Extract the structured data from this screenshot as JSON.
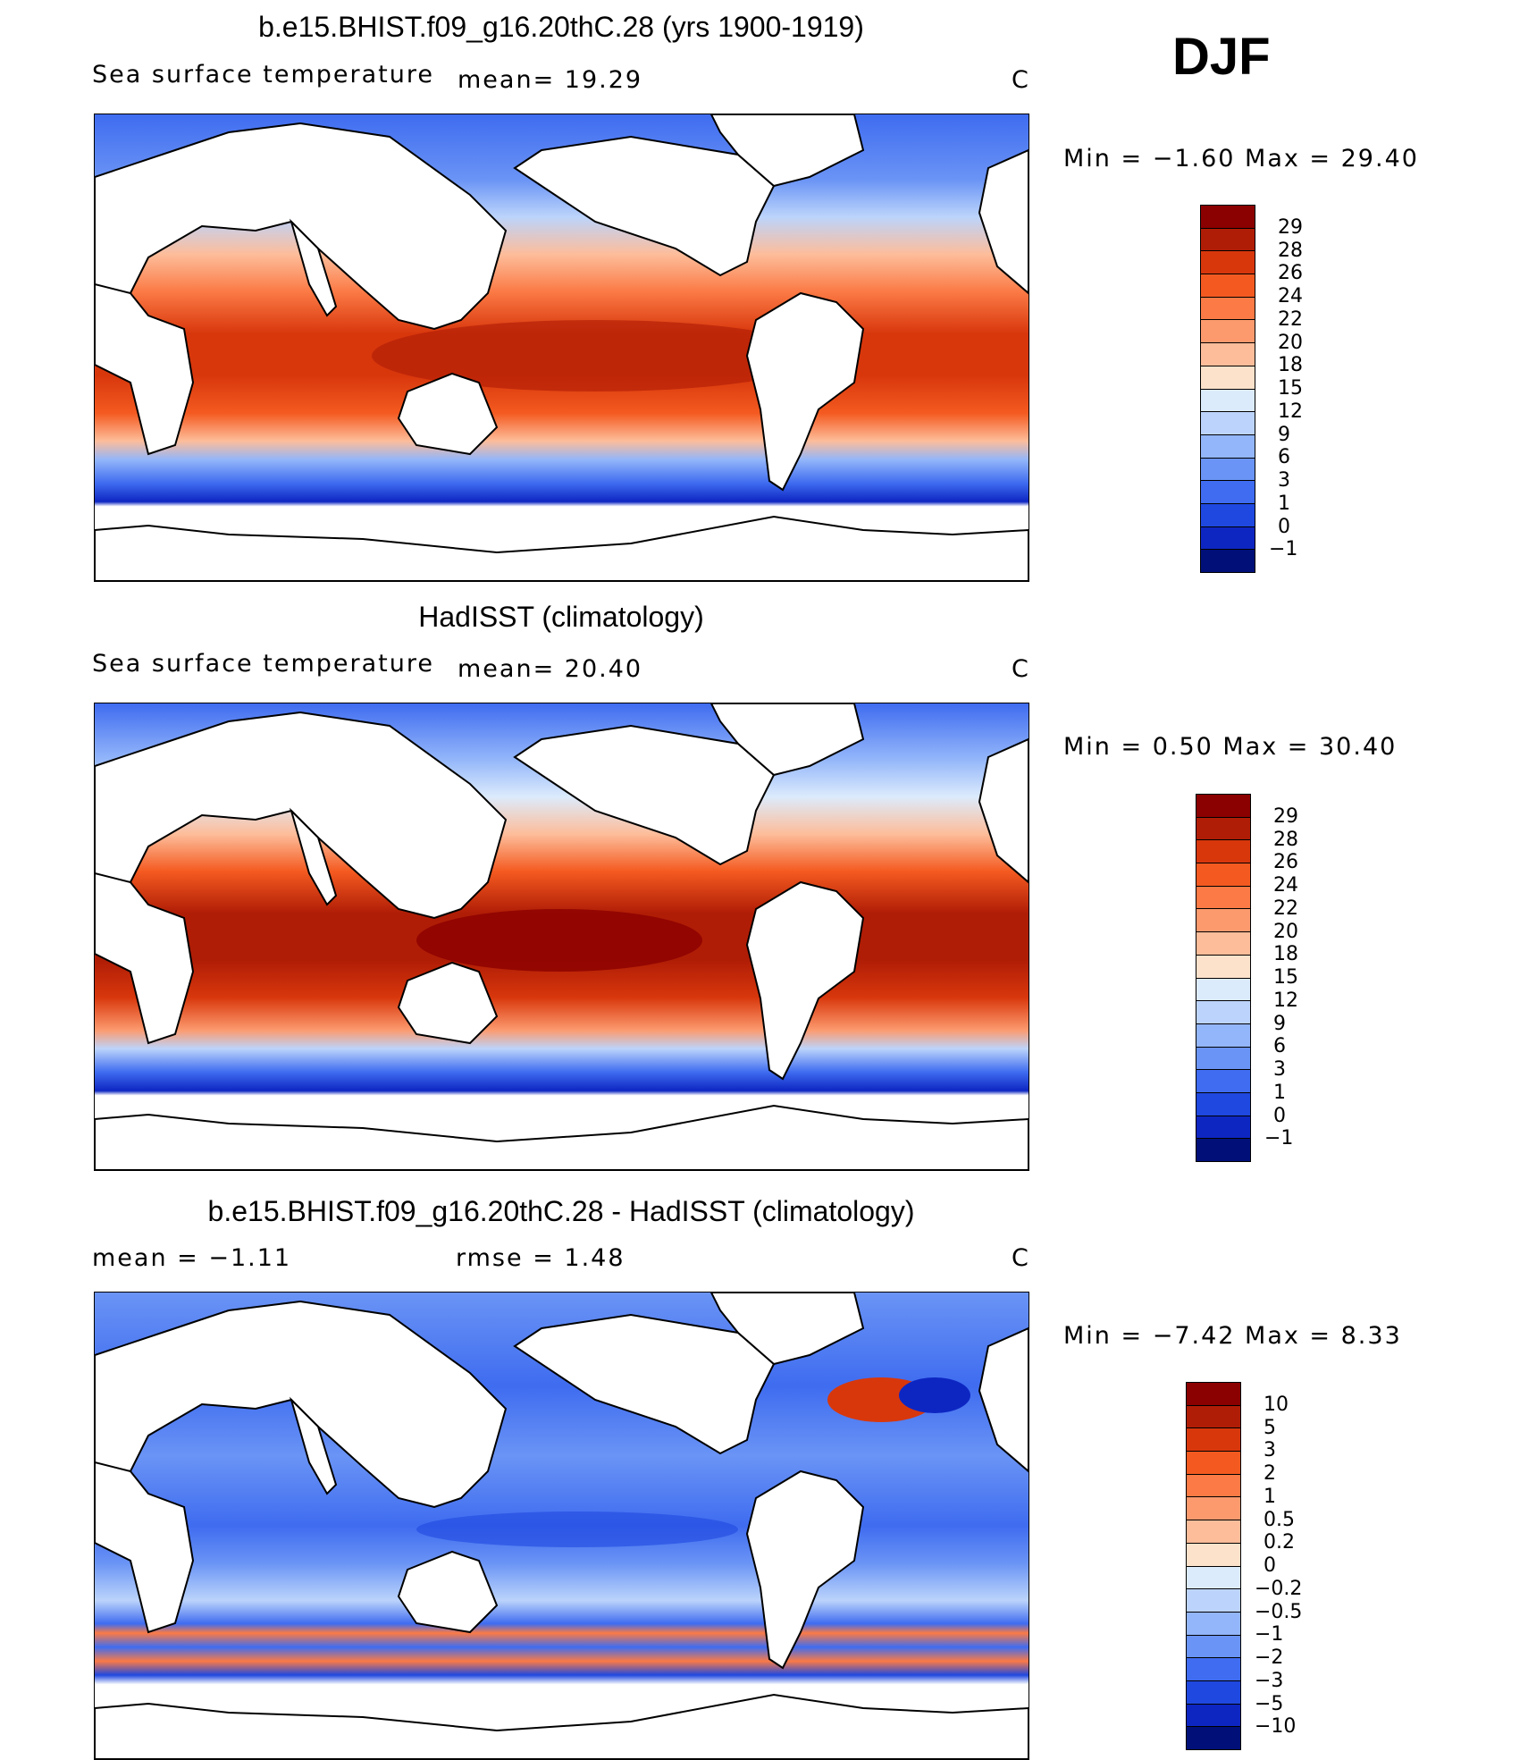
{
  "season": "DJF",
  "panels": [
    {
      "title": "b.e15.BHIST.f09_g16.20thC.28 (yrs 1900-1919)",
      "variable": "Sea surface temperature",
      "stat_left": "",
      "stat_mid": "mean=   19.29",
      "units": "C",
      "minmax": "Min =   −1.60  Max =   29.40",
      "colorbar_labels": [
        "29",
        "28",
        "26",
        "24",
        "22",
        "20",
        "18",
        "15",
        "12",
        "9",
        "6",
        "3",
        "1",
        "0",
        "−1"
      ],
      "colorbar_colors": [
        "#8b0000",
        "#b01d06",
        "#d8370c",
        "#f45a20",
        "#fb7a45",
        "#fc9a6e",
        "#fdbd9a",
        "#fde2cb",
        "#dcebfc",
        "#bcd4fb",
        "#93b6fa",
        "#6a94f5",
        "#3f6cf0",
        "#1f48e0",
        "#0d26c2",
        "#001078"
      ]
    },
    {
      "title": "HadISST (climatology)",
      "variable": "Sea surface temperature",
      "stat_left": "",
      "stat_mid": "mean=   20.40",
      "units": "C",
      "minmax": "Min =    0.50  Max =   30.40",
      "colorbar_labels": [
        "29",
        "28",
        "26",
        "24",
        "22",
        "20",
        "18",
        "15",
        "12",
        "9",
        "6",
        "3",
        "1",
        "0",
        "−1"
      ],
      "colorbar_colors": [
        "#8b0000",
        "#b01d06",
        "#d8370c",
        "#f45a20",
        "#fb7a45",
        "#fc9a6e",
        "#fdbd9a",
        "#fde2cb",
        "#dcebfc",
        "#bcd4fb",
        "#93b6fa",
        "#6a94f5",
        "#3f6cf0",
        "#1f48e0",
        "#0d26c2",
        "#001078"
      ]
    },
    {
      "title": "b.e15.BHIST.f09_g16.20thC.28 - HadISST (climatology)",
      "variable": "",
      "stat_left": "mean =   −1.11",
      "stat_mid": "rmse =    1.48",
      "units": "C",
      "minmax": "Min =   −7.42  Max =    8.33",
      "colorbar_labels": [
        "10",
        "5",
        "3",
        "2",
        "1",
        "0.5",
        "0.2",
        "0",
        "−0.2",
        "−0.5",
        "−1",
        "−2",
        "−3",
        "−5",
        "−10"
      ],
      "colorbar_colors": [
        "#8b0000",
        "#b01d06",
        "#d8370c",
        "#f45a20",
        "#fb7a45",
        "#fc9a6e",
        "#fdbd9a",
        "#fde2cb",
        "#dcebfc",
        "#bcd4fb",
        "#93b6fa",
        "#6a94f5",
        "#3f6cf0",
        "#1f48e0",
        "#0d26c2",
        "#001078"
      ]
    }
  ]
}
